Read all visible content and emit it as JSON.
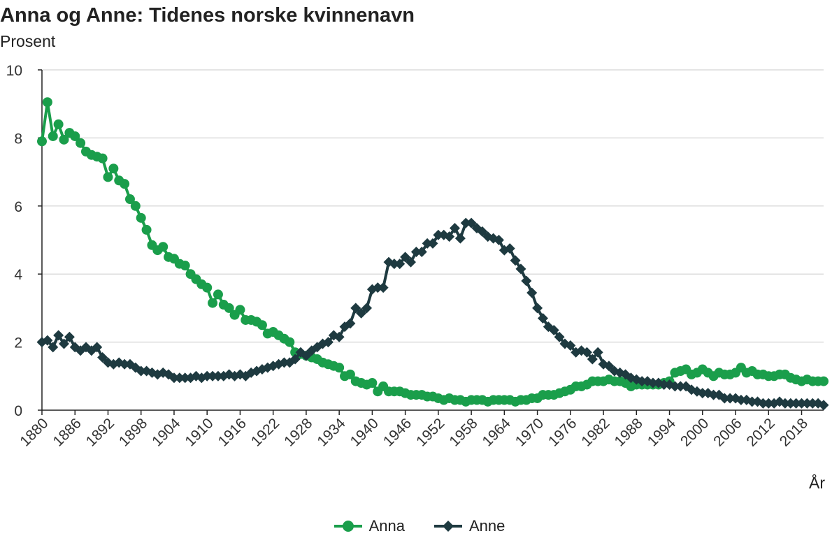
{
  "chart_data": {
    "type": "line",
    "title": "Anna og Anne: Tidenes norske kvinnenavn",
    "ylabel": "Prosent",
    "xlabel": "År",
    "ylim": [
      0,
      10
    ],
    "yticks": [
      "0",
      "2",
      "4",
      "6",
      "8",
      "10"
    ],
    "xlim": [
      1880,
      2022
    ],
    "xticks": [
      "1880",
      "1886",
      "1892",
      "1898",
      "1904",
      "1910",
      "1916",
      "1922",
      "1928",
      "1934",
      "1940",
      "1946",
      "1952",
      "1958",
      "1964",
      "1970",
      "1976",
      "1982",
      "1988",
      "1994",
      "2000",
      "2006",
      "2012",
      "2018"
    ],
    "grid": "horizontal",
    "legend": "bottom-center",
    "x_start": 1880,
    "series": [
      {
        "name": "Anna",
        "color": "#1a9e4b",
        "marker": "circle",
        "values": [
          7.9,
          9.05,
          8.05,
          8.4,
          7.95,
          8.15,
          8.05,
          7.85,
          7.6,
          7.5,
          7.45,
          7.4,
          6.85,
          7.1,
          6.75,
          6.65,
          6.2,
          6.0,
          5.65,
          5.3,
          4.85,
          4.7,
          4.8,
          4.5,
          4.45,
          4.3,
          4.25,
          4.0,
          3.85,
          3.7,
          3.6,
          3.15,
          3.4,
          3.1,
          3.0,
          2.8,
          2.95,
          2.65,
          2.65,
          2.6,
          2.5,
          2.25,
          2.3,
          2.2,
          2.1,
          2.0,
          1.7,
          1.65,
          1.6,
          1.55,
          1.5,
          1.4,
          1.35,
          1.3,
          1.25,
          1.0,
          1.05,
          0.85,
          0.8,
          0.75,
          0.8,
          0.55,
          0.7,
          0.55,
          0.55,
          0.55,
          0.5,
          0.45,
          0.45,
          0.45,
          0.4,
          0.4,
          0.35,
          0.3,
          0.35,
          0.3,
          0.3,
          0.25,
          0.3,
          0.3,
          0.3,
          0.25,
          0.3,
          0.3,
          0.3,
          0.3,
          0.25,
          0.3,
          0.3,
          0.35,
          0.35,
          0.45,
          0.45,
          0.45,
          0.5,
          0.55,
          0.6,
          0.7,
          0.7,
          0.75,
          0.85,
          0.85,
          0.85,
          0.9,
          0.85,
          0.85,
          0.8,
          0.7,
          0.75,
          0.75,
          0.75,
          0.75,
          0.75,
          0.8,
          0.85,
          1.1,
          1.15,
          1.2,
          1.05,
          1.1,
          1.2,
          1.1,
          1.0,
          1.1,
          1.05,
          1.05,
          1.1,
          1.25,
          1.1,
          1.15,
          1.05,
          1.05,
          1.0,
          1.0,
          1.05,
          1.05,
          0.95,
          0.9,
          0.85,
          0.9,
          0.85,
          0.85,
          0.85
        ]
      },
      {
        "name": "Anne",
        "color": "#1e3a40",
        "marker": "diamond",
        "values": [
          2.0,
          2.05,
          1.85,
          2.2,
          1.95,
          2.15,
          1.85,
          1.75,
          1.85,
          1.75,
          1.85,
          1.55,
          1.4,
          1.35,
          1.4,
          1.35,
          1.35,
          1.25,
          1.15,
          1.15,
          1.1,
          1.05,
          1.1,
          1.05,
          0.95,
          0.95,
          0.95,
          0.95,
          1.0,
          0.95,
          1.0,
          1.0,
          1.0,
          1.0,
          1.05,
          1.0,
          1.05,
          1.0,
          1.1,
          1.15,
          1.2,
          1.25,
          1.3,
          1.35,
          1.4,
          1.4,
          1.5,
          1.7,
          1.6,
          1.75,
          1.85,
          1.95,
          2.0,
          2.2,
          2.15,
          2.45,
          2.55,
          3.0,
          2.85,
          3.0,
          3.55,
          3.6,
          3.6,
          4.35,
          4.3,
          4.3,
          4.5,
          4.35,
          4.65,
          4.65,
          4.9,
          4.9,
          5.15,
          5.15,
          5.1,
          5.35,
          5.05,
          5.5,
          5.5,
          5.35,
          5.25,
          5.1,
          5.05,
          5.0,
          4.7,
          4.75,
          4.4,
          4.15,
          3.8,
          3.45,
          3.0,
          2.7,
          2.45,
          2.35,
          2.15,
          1.95,
          1.9,
          1.7,
          1.75,
          1.7,
          1.5,
          1.7,
          1.35,
          1.3,
          1.15,
          1.1,
          1.05,
          0.95,
          0.9,
          0.85,
          0.85,
          0.8,
          0.8,
          0.75,
          0.75,
          0.7,
          0.7,
          0.7,
          0.6,
          0.55,
          0.5,
          0.5,
          0.45,
          0.45,
          0.35,
          0.35,
          0.35,
          0.3,
          0.3,
          0.25,
          0.25,
          0.2,
          0.2,
          0.2,
          0.25,
          0.2,
          0.2,
          0.2,
          0.2,
          0.2,
          0.2,
          0.2,
          0.15
        ]
      }
    ]
  }
}
